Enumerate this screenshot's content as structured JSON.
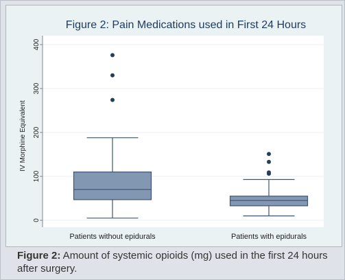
{
  "caption": {
    "label": "Figure 2:",
    "text": " Amount of systemic opioids (mg) used in the first 24 hours after surgery."
  },
  "chart_data": {
    "type": "box",
    "title": "Figure 2: Pain Medications used in First 24 Hours",
    "xlabel": "",
    "ylabel": "IV Morphine Equivalent",
    "ylim": [
      0,
      400
    ],
    "yticks": [
      0,
      100,
      200,
      300,
      400
    ],
    "grid": true,
    "categories": [
      "Patients without epidurals",
      "Patients with epidurals"
    ],
    "boxes": [
      {
        "category": "Patients without epidurals",
        "whisker_low": 5,
        "q1": 47,
        "median": 70,
        "q3": 110,
        "whisker_high": 188,
        "outliers": [
          274,
          330,
          376
        ]
      },
      {
        "category": "Patients with epidurals",
        "whisker_low": 10,
        "q1": 33,
        "median": 45,
        "q3": 55,
        "whisker_high": 93,
        "outliers": [
          106,
          109,
          133,
          151
        ]
      }
    ],
    "colors": {
      "box_fill": "#8197b2",
      "box_stroke": "#3e5470",
      "outlier": "#243e5e",
      "plot_bg": "#ffffff",
      "panel_bg": "#eaf2f3",
      "grid": "#e8eef0"
    }
  }
}
